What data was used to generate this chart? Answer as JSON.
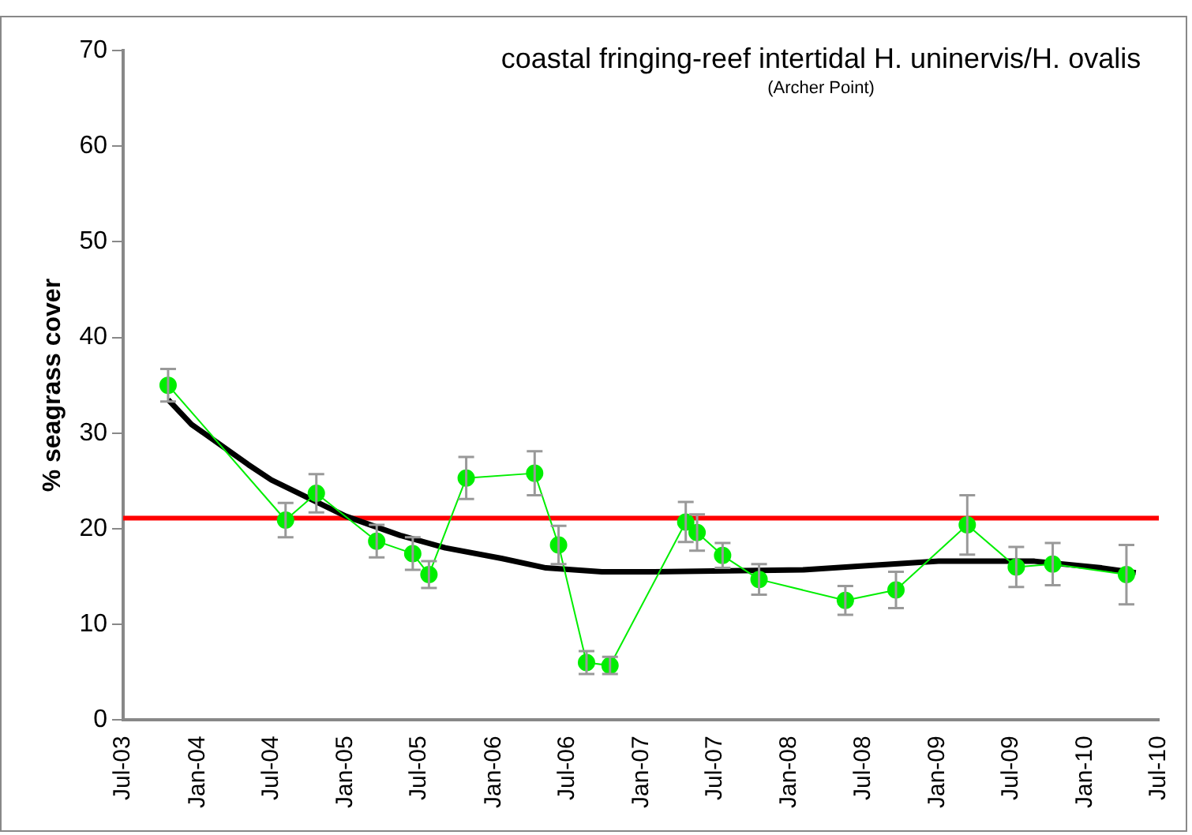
{
  "chart_data": {
    "type": "line",
    "title": "coastal fringing-reef intertidal H. uninervis/H. ovalis",
    "subtitle": "(Archer Point)",
    "ylabel": "% seagrass cover",
    "ylim": [
      0,
      70
    ],
    "yticks": [
      0,
      10,
      20,
      30,
      40,
      50,
      60,
      70
    ],
    "xlim": [
      "2003-07",
      "2010-07"
    ],
    "xticks": [
      {
        "value": "2003-07",
        "label": "Jul-03"
      },
      {
        "value": "2004-01",
        "label": "Jan-04"
      },
      {
        "value": "2004-07",
        "label": "Jul-04"
      },
      {
        "value": "2005-01",
        "label": "Jan-05"
      },
      {
        "value": "2005-07",
        "label": "Jul-05"
      },
      {
        "value": "2006-01",
        "label": "Jan-06"
      },
      {
        "value": "2006-07",
        "label": "Jul-06"
      },
      {
        "value": "2007-01",
        "label": "Jan-07"
      },
      {
        "value": "2007-07",
        "label": "Jul-07"
      },
      {
        "value": "2008-01",
        "label": "Jan-08"
      },
      {
        "value": "2008-07",
        "label": "Jul-08"
      },
      {
        "value": "2009-01",
        "label": "Jan-09"
      },
      {
        "value": "2009-07",
        "label": "Jul-09"
      },
      {
        "value": "2010-01",
        "label": "Jan-10"
      },
      {
        "value": "2010-07",
        "label": "Jul-10"
      }
    ],
    "grid": false,
    "legend": false,
    "series": [
      {
        "color": "#00ee00",
        "marker": "circle",
        "line_style": "solid",
        "x": [
          "2003-10-20",
          "2004-08-05",
          "2004-10-20",
          "2005-03-18",
          "2005-06-15",
          "2005-07-25",
          "2005-10-25",
          "2006-04-12",
          "2006-06-10",
          "2006-08-18",
          "2006-10-15",
          "2007-04-20",
          "2007-05-18",
          "2007-07-20",
          "2007-10-18",
          "2008-05-18",
          "2008-09-20",
          "2009-03-15",
          "2009-07-14",
          "2009-10-12",
          "2010-04-12"
        ],
        "values": [
          35.0,
          20.9,
          23.7,
          18.7,
          17.4,
          15.2,
          25.3,
          25.8,
          18.3,
          6.0,
          5.7,
          20.7,
          19.6,
          17.2,
          14.7,
          12.5,
          13.6,
          20.4,
          16.0,
          16.3,
          15.2
        ],
        "errors": [
          1.7,
          1.8,
          2.0,
          1.7,
          1.7,
          1.4,
          2.2,
          2.3,
          2.0,
          1.2,
          0.9,
          2.1,
          1.9,
          1.3,
          1.6,
          1.5,
          1.9,
          3.1,
          2.1,
          2.2,
          3.1
        ]
      },
      {
        "color": "#000000",
        "marker": "none",
        "line_style": "solid",
        "x": [
          "2003-10-20",
          "2003-12-17",
          "2004-05-05",
          "2004-07-01",
          "2005-01-01",
          "2005-05-15",
          "2005-09-03",
          "2006-01-20",
          "2006-05-10",
          "2006-09-25",
          "2007-02-01",
          "2008-02-05",
          "2008-06-25",
          "2009-01-03",
          "2009-08-28",
          "2010-02-10",
          "2010-05-05"
        ],
        "values": [
          33.5,
          30.9,
          26.7,
          25.1,
          21.3,
          19.3,
          18.0,
          16.9,
          15.9,
          15.5,
          15.5,
          15.7,
          16.1,
          16.6,
          16.6,
          15.9,
          15.4
        ]
      }
    ],
    "ref_lines": [
      {
        "axis": "y",
        "value": 21.1,
        "color": "#ff0000",
        "line_style": "solid"
      }
    ]
  }
}
